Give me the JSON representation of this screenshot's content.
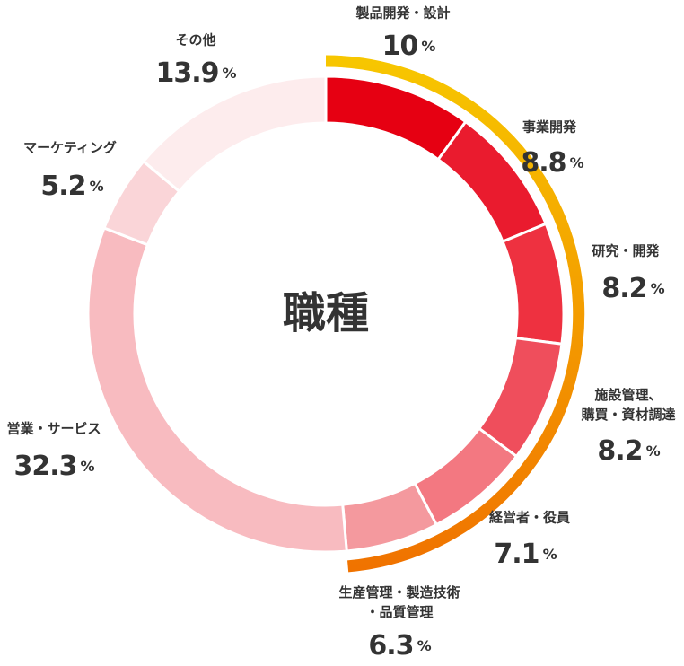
{
  "chart_data": {
    "type": "donut",
    "title": "職種",
    "unit": "%",
    "categories": [
      "製品開発・設計",
      "事業開発",
      "研究・開発",
      "施設管理、\n購買・資材調達",
      "経営者・役員",
      "生産管理・製造技術\n・品質管理",
      "営業・サービス",
      "マーケティング",
      "その他"
    ],
    "values": [
      10,
      8.8,
      8.2,
      8.2,
      7.1,
      6.3,
      32.3,
      5.2,
      13.9
    ],
    "colors": [
      "#e60012",
      "#ea1b2e",
      "#ee3140",
      "#ef4e5c",
      "#f37881",
      "#f4999e",
      "#f8bbc0",
      "#fad5d8",
      "#fdeced"
    ]
  }
}
